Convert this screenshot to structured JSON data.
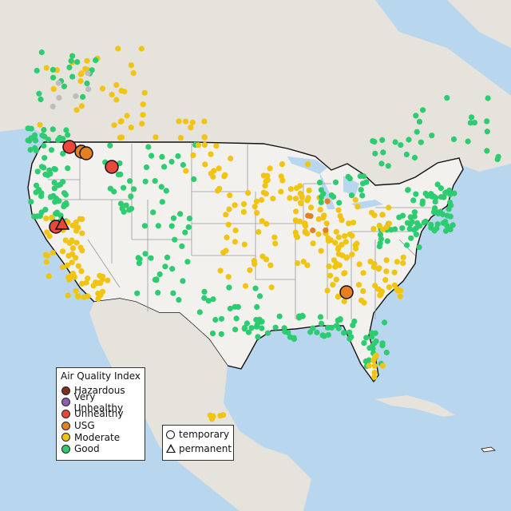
{
  "legend": {
    "title": "Air Quality Index",
    "categories": [
      {
        "label": "Hazardous",
        "color": "#7e2e1e"
      },
      {
        "label": "Very Unhealthy",
        "color": "#8e5fb0"
      },
      {
        "label": "Unhealthy",
        "color": "#e8473a"
      },
      {
        "label": "USG",
        "color": "#e67e22"
      },
      {
        "label": "Moderate",
        "color": "#f1c40f"
      },
      {
        "label": "Good",
        "color": "#2ecc71"
      }
    ],
    "types": [
      {
        "label": "temporary",
        "shape": "circle"
      },
      {
        "label": "permanent",
        "shape": "triangle"
      }
    ]
  },
  "colors": {
    "water": "#b9d6ef",
    "land_us": "#f2f1ee",
    "land_other": "#e6e2dc",
    "state_lines": "#9a9a9a",
    "national_border": "#111111",
    "no_data": "#bdbdbd"
  },
  "monitors_large": [
    {
      "id": "north-idaho-1",
      "category": "Unhealthy",
      "type": "temporary"
    },
    {
      "id": "north-idaho-2",
      "category": "USG",
      "type": "temporary"
    },
    {
      "id": "north-idaho-3",
      "category": "USG",
      "type": "temporary"
    },
    {
      "id": "west-montana",
      "category": "Unhealthy",
      "type": "temporary"
    },
    {
      "id": "northern-california",
      "category": "Unhealthy",
      "type": "temporary"
    },
    {
      "id": "northern-california-permanent",
      "category": "Unhealthy",
      "type": "permanent"
    },
    {
      "id": "southern-appalachia",
      "category": "USG",
      "type": "temporary"
    }
  ]
}
